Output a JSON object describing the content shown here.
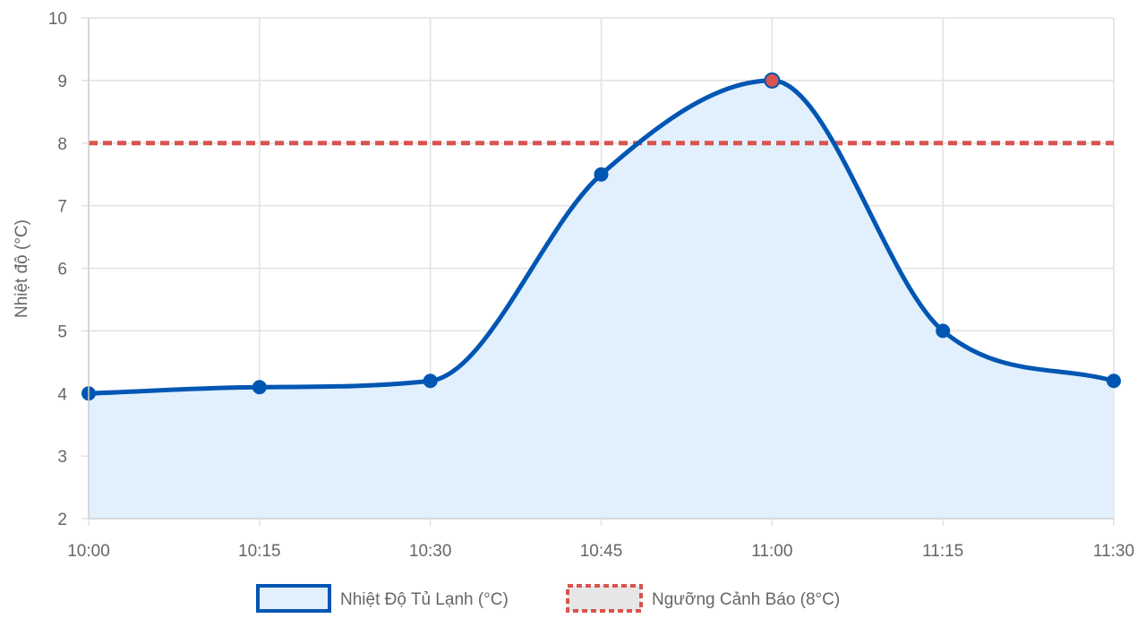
{
  "chart_data": {
    "type": "area",
    "x": [
      "10:00",
      "10:15",
      "10:30",
      "10:45",
      "11:00",
      "11:15",
      "11:30"
    ],
    "ylabel": "Nhiệt độ (°C)",
    "xlabel": "",
    "ylim": [
      2,
      10
    ],
    "yticks": [
      2,
      3,
      4,
      5,
      6,
      7,
      8,
      9,
      10
    ],
    "grid": true,
    "legend_position": "bottom",
    "series": [
      {
        "name": "Nhiệt Độ Tủ Lạnh (°C)",
        "values": [
          4,
          4.1,
          4.2,
          7.5,
          9,
          5,
          4.2
        ],
        "line_color": "#0056b3",
        "fill_color": "#e1f0fc",
        "point_color": "#0056b3",
        "highlight_point_color": "#d9534f",
        "highlight_threshold": 8,
        "smooth": true
      },
      {
        "name": "Ngưỡng Cảnh Báo (8°C)",
        "values": [
          8,
          8,
          8,
          8,
          8,
          8,
          8
        ],
        "line_color": "#d9534f",
        "legend_fill": "#e6e6e6",
        "dashed": true
      }
    ]
  }
}
